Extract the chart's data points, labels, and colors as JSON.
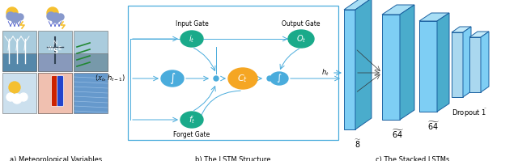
{
  "title_a": "a) Meteorological Variables",
  "title_b": "b) The LSTM Structure",
  "title_c": "c) The Stacked LSTMs",
  "teal_color": "#1aaa8a",
  "blue_node_color": "#4aacdc",
  "orange_color": "#f5a623",
  "light_blue_face": "#7ecef4",
  "mid_blue_face": "#5ab8dc",
  "top_face_color": "#aaddf7",
  "edge_color": "#1a60a0",
  "arrow_color": "#4aacdc",
  "label_input_gate": "Input Gate",
  "label_output_gate": "Output Gate",
  "label_forget_gate": "Forget Gate",
  "panel_box_color": "#4aacdc",
  "weather_icon_colors": [
    "#ddeeff",
    "#ddeeff"
  ],
  "mid_row_colors": [
    "#88bbdd",
    "#c8d8e8",
    "#aac8dd"
  ],
  "bot_row_colors": [
    "#cce8f0",
    "#e8e0d0",
    "#88aacc"
  ],
  "label_8": "$\\widetilde{8}$",
  "label_64": "$\\widetilde{64}$",
  "label_dropout": "Dropout $\\widetilde{1}$"
}
